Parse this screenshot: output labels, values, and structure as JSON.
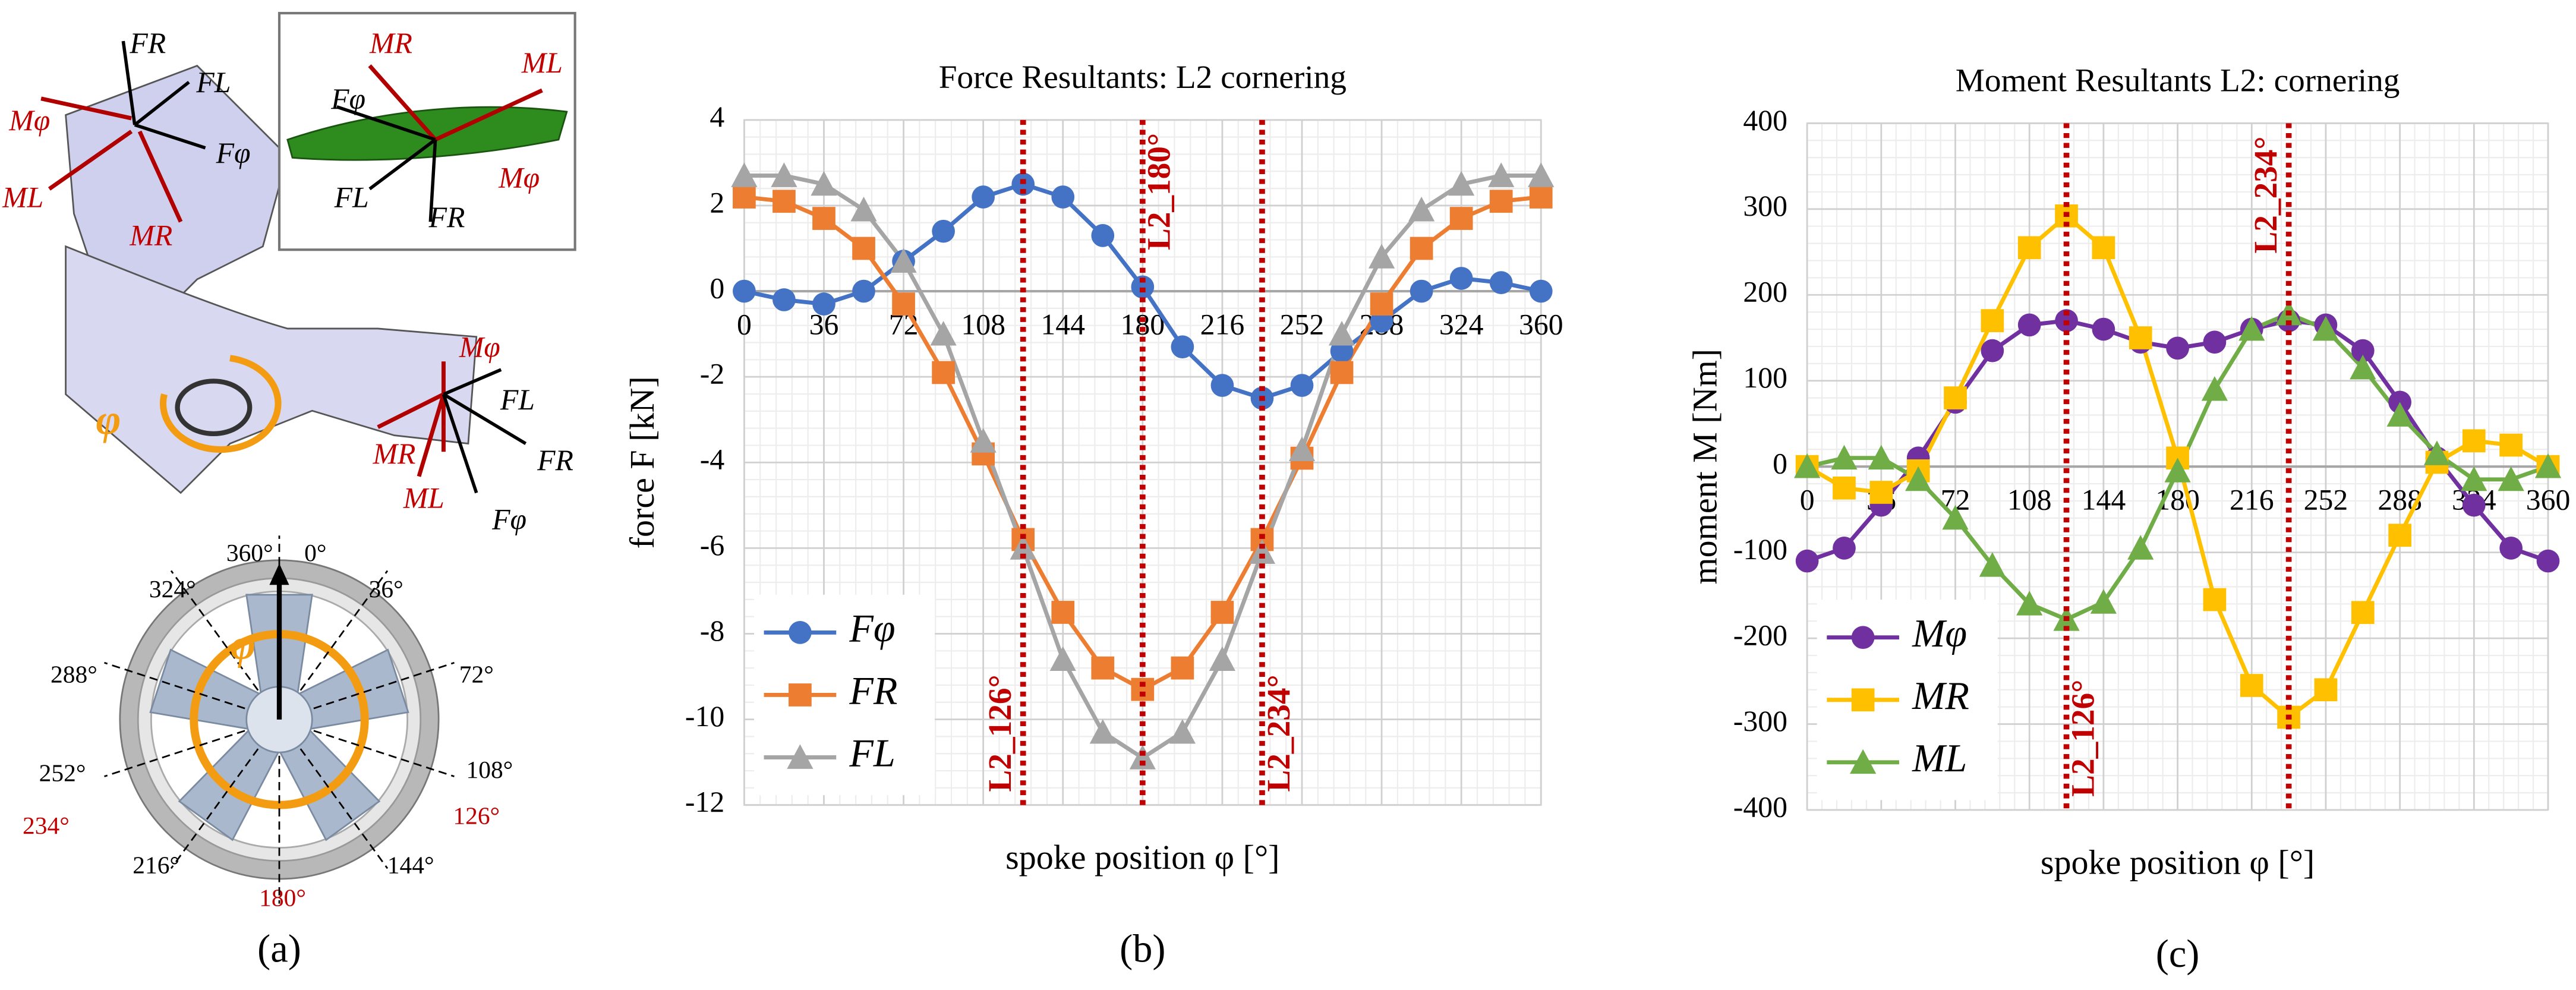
{
  "panel_a": {
    "panel_label": "(a)",
    "angle_labels": [
      "360°",
      "0°",
      "36°",
      "72°",
      "108°",
      "126°",
      "144°",
      "180°",
      "216°",
      "234°",
      "252°",
      "288°",
      "324°"
    ],
    "labels": [
      "FR",
      "FL",
      "Mφ",
      "Fφ",
      "ML",
      "MR",
      "MR",
      "ML",
      "Fφ",
      "FL",
      "FR",
      "Mφ",
      "Mφ",
      "FL",
      "MR",
      "FR",
      "ML",
      "Fφ",
      "φ",
      "φ"
    ]
  },
  "chart_data": [
    {
      "type": "line",
      "title": "Force Resultants: L2 cornering",
      "x_label": "spoke position φ [°]",
      "y_label": "force F [kN]",
      "panel_label": "(b)",
      "x": [
        0,
        18,
        36,
        54,
        72,
        90,
        108,
        126,
        144,
        162,
        180,
        198,
        216,
        234,
        252,
        270,
        288,
        306,
        324,
        342,
        360
      ],
      "xlim": [
        0,
        360
      ],
      "xticks": [
        0,
        36,
        72,
        108,
        144,
        180,
        216,
        252,
        288,
        324,
        360
      ],
      "ylim": [
        -12,
        4
      ],
      "yticks": [
        -12,
        -10,
        -8,
        -6,
        -4,
        -2,
        0,
        2,
        4
      ],
      "grid": true,
      "legend": "lower left",
      "series": [
        {
          "name": "Fφ",
          "color": "#4472c4",
          "marker": "circle",
          "values": [
            0,
            -0.2,
            -0.3,
            0,
            0.7,
            1.4,
            2.2,
            2.5,
            2.2,
            1.3,
            0.1,
            -1.3,
            -2.2,
            -2.5,
            -2.2,
            -1.4,
            -0.7,
            0,
            0.3,
            0.2,
            0
          ]
        },
        {
          "name": "FR",
          "color": "#ed7d31",
          "marker": "square",
          "values": [
            2.2,
            2.1,
            1.7,
            1.0,
            -0.3,
            -1.9,
            -3.8,
            -5.8,
            -7.5,
            -8.8,
            -9.3,
            -8.8,
            -7.5,
            -5.8,
            -3.9,
            -1.9,
            -0.3,
            1.0,
            1.7,
            2.1,
            2.2
          ]
        },
        {
          "name": "FL",
          "color": "#a5a5a5",
          "marker": "triangle",
          "values": [
            2.7,
            2.7,
            2.5,
            1.9,
            0.7,
            -1.0,
            -3.5,
            -6.0,
            -8.6,
            -10.3,
            -10.9,
            -10.3,
            -8.6,
            -6.1,
            -3.7,
            -1.0,
            0.8,
            1.9,
            2.5,
            2.7,
            2.7
          ]
        }
      ],
      "reference_lines": [
        {
          "x": 126,
          "label": "L2_126°"
        },
        {
          "x": 180,
          "label": "L2_180°"
        },
        {
          "x": 234,
          "label": "L2_234°"
        }
      ]
    },
    {
      "type": "line",
      "title": "Moment Resultants L2: cornering",
      "x_label": "spoke position φ [°]",
      "y_label": "moment M [Nm]",
      "panel_label": "(c)",
      "x": [
        0,
        18,
        36,
        54,
        72,
        90,
        108,
        126,
        144,
        162,
        180,
        198,
        216,
        234,
        252,
        270,
        288,
        306,
        324,
        342,
        360
      ],
      "xlim": [
        0,
        360
      ],
      "xticks": [
        0,
        36,
        72,
        108,
        144,
        180,
        216,
        252,
        288,
        324,
        360
      ],
      "ylim": [
        -400,
        400
      ],
      "yticks": [
        -400,
        -300,
        -200,
        -100,
        0,
        100,
        200,
        300,
        400
      ],
      "grid": true,
      "legend": "lower left",
      "series": [
        {
          "name": "Mφ",
          "color": "#7030a0",
          "marker": "circle",
          "values": [
            -110,
            -95,
            -45,
            10,
            75,
            135,
            165,
            170,
            160,
            145,
            138,
            145,
            160,
            170,
            165,
            135,
            75,
            10,
            -45,
            -95,
            -110
          ]
        },
        {
          "name": "MR",
          "color": "#ffc000",
          "marker": "square",
          "values": [
            0,
            -25,
            -30,
            -5,
            80,
            170,
            255,
            292,
            255,
            150,
            10,
            -155,
            -255,
            -292,
            -260,
            -170,
            -80,
            5,
            30,
            25,
            0
          ]
        },
        {
          "name": "ML",
          "color": "#70ad47",
          "marker": "triangle",
          "values": [
            0,
            10,
            10,
            -15,
            -60,
            -115,
            -160,
            -178,
            -158,
            -95,
            -5,
            90,
            160,
            178,
            160,
            115,
            60,
            15,
            -15,
            -15,
            0
          ]
        }
      ],
      "reference_lines": [
        {
          "x": 126,
          "label": "L2_126°"
        },
        {
          "x": 234,
          "label": "L2_234°"
        }
      ]
    }
  ]
}
